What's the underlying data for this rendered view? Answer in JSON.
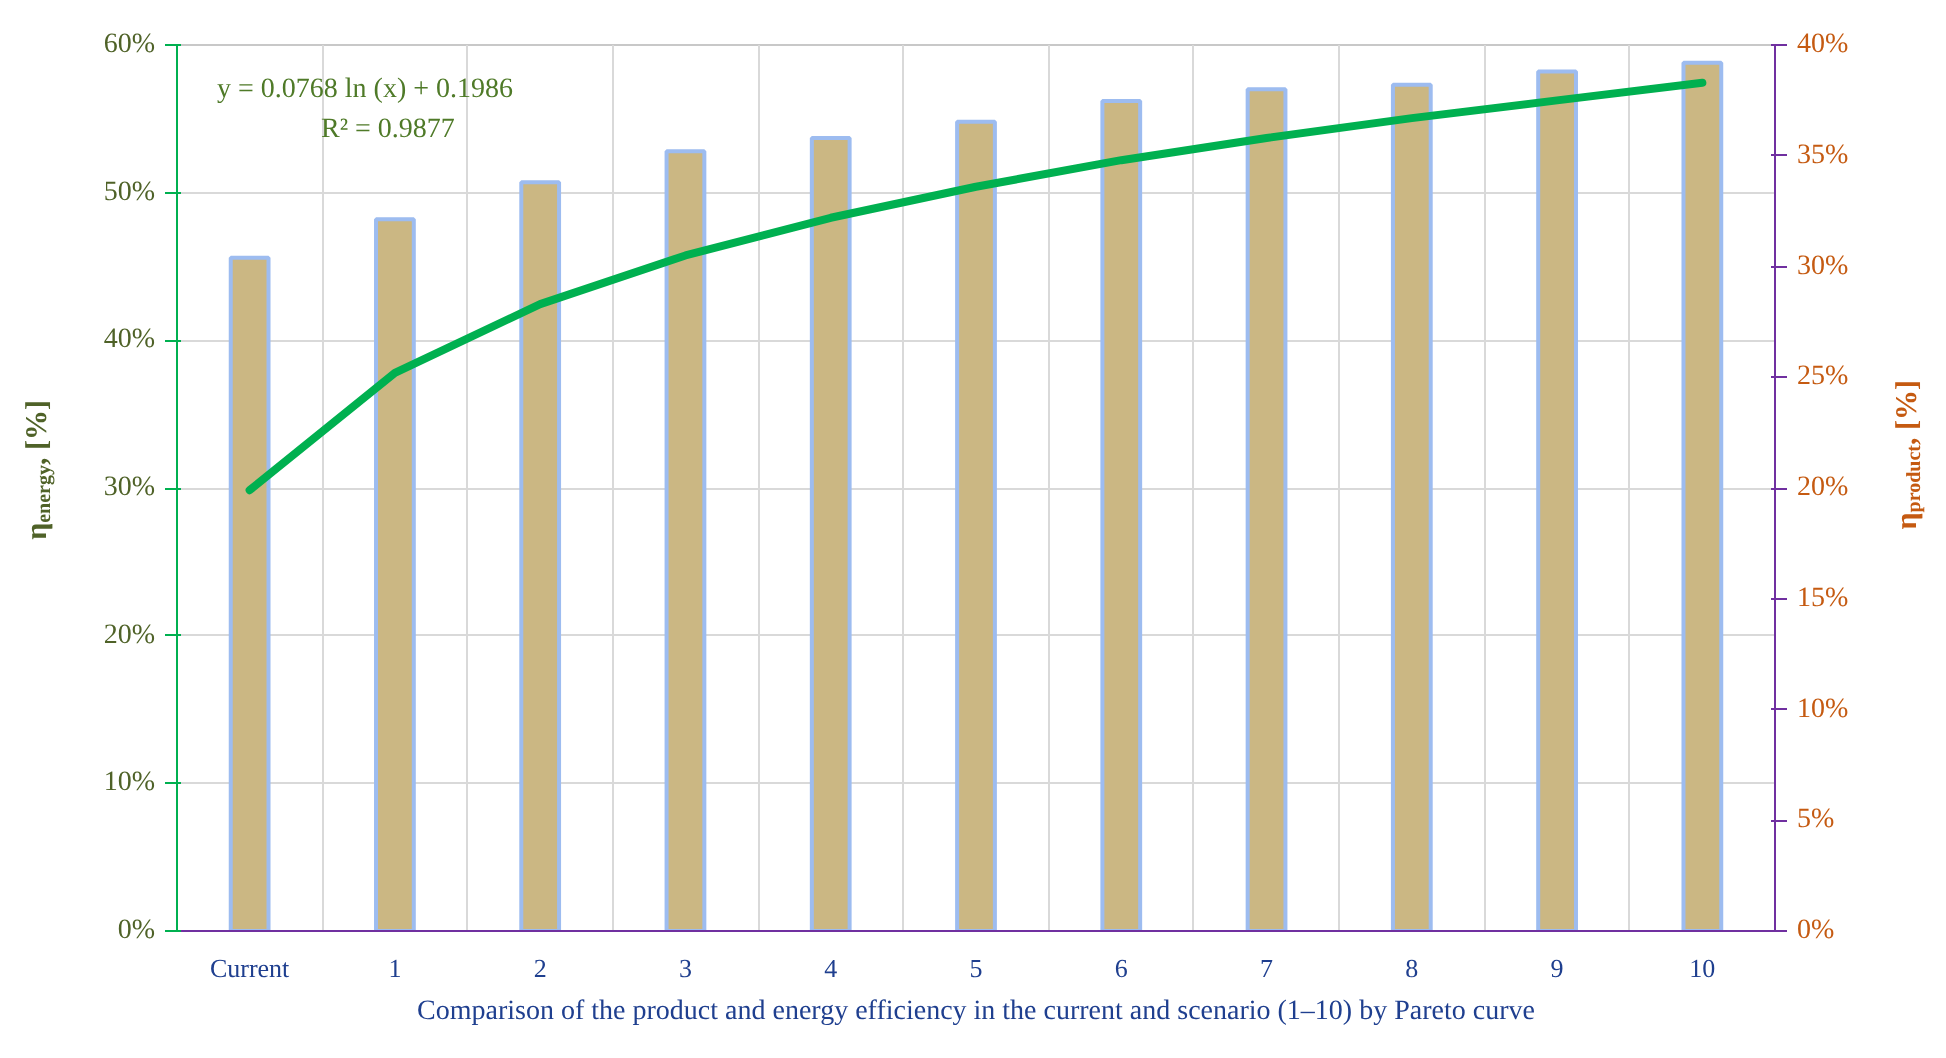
{
  "chart_data": {
    "type": "bar",
    "categories": [
      "Current",
      "1",
      "2",
      "3",
      "4",
      "5",
      "6",
      "7",
      "8",
      "9",
      "10"
    ],
    "series": [
      {
        "color": "#cbb783",
        "values": [
          45.6,
          48.2,
          50.7,
          52.8,
          53.7,
          54.8,
          56.2,
          57.0,
          57.3,
          58.2,
          58.8
        ]
      },
      {
        "type": "line",
        "axis": "y2",
        "color": "#00b050",
        "x": [
          "Current",
          "1",
          "2",
          "3",
          "4",
          "5",
          "6",
          "7",
          "8",
          "9",
          "10"
        ],
        "values": [
          19.9,
          25.2,
          28.3,
          30.5,
          32.2,
          33.6,
          34.8,
          35.8,
          36.7,
          37.5,
          38.3
        ]
      }
    ],
    "xlabel": "Comparison of the product and energy efficiency in the current and scenario (1–10) by Pareto curve",
    "ylabel": "η$_{energy}$, [%]",
    "y2label": "η$_{product}$, [%]",
    "ylim": [
      0,
      60
    ],
    "yticks": [
      {
        "value": 0,
        "label": "0%"
      },
      {
        "value": 10,
        "label": "10%"
      },
      {
        "value": 20,
        "label": "20%"
      },
      {
        "value": 30,
        "label": "30%"
      },
      {
        "value": 40,
        "label": "40%"
      },
      {
        "value": 50,
        "label": "50%"
      },
      {
        "value": 60,
        "label": "60%"
      }
    ],
    "y2lim": [
      0,
      40
    ],
    "y2ticks": [
      {
        "value": 0,
        "label": "0%"
      },
      {
        "value": 5,
        "label": "5%"
      },
      {
        "value": 10,
        "label": "10%"
      },
      {
        "value": 15,
        "label": "15%"
      },
      {
        "value": 20,
        "label": "20%"
      },
      {
        "value": 25,
        "label": "25%"
      },
      {
        "value": 30,
        "label": "30%"
      },
      {
        "value": 35,
        "label": "35%"
      },
      {
        "value": 40,
        "label": "40%"
      }
    ],
    "annotations": [
      "y = 0.0768 ln (x) + 0.1986",
      "R² = 0.9877"
    ],
    "grid": true
  }
}
